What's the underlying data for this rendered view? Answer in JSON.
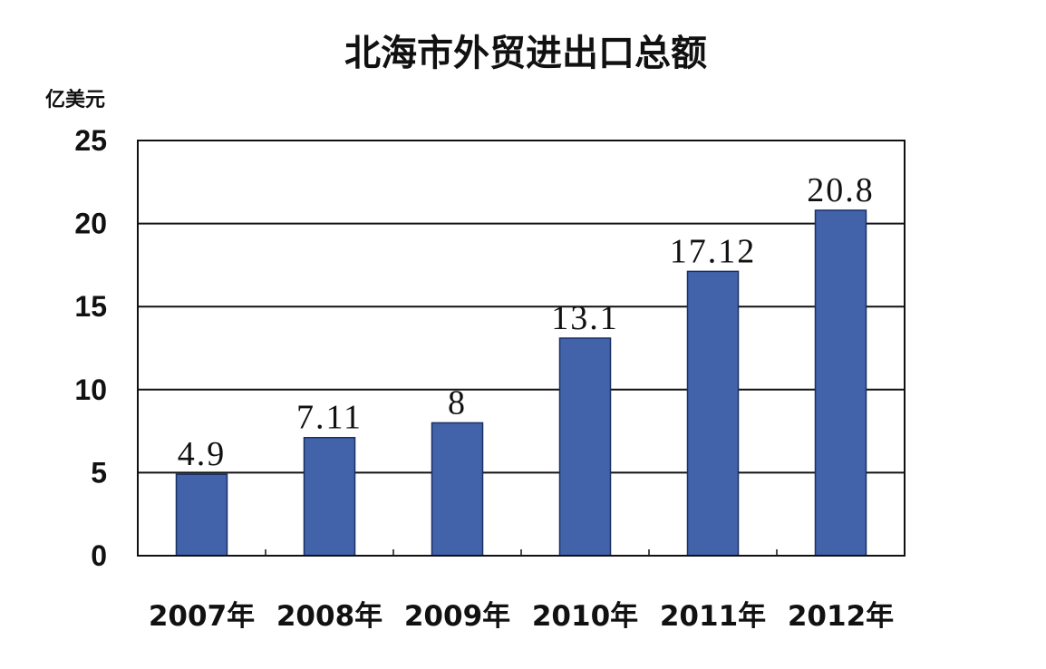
{
  "chart_data": {
    "type": "bar",
    "title": "北海市外贸进出口总额",
    "ylabel": "亿美元",
    "xlabel": "",
    "categories": [
      "2007年",
      "2008年",
      "2009年",
      "2010年",
      "2011年",
      "2012年"
    ],
    "values": [
      4.9,
      7.11,
      8,
      13.1,
      17.12,
      20.8
    ],
    "data_labels": [
      "4.9",
      "7.11",
      "8",
      "13.1",
      "17.12",
      "20.8"
    ],
    "ylim": [
      0,
      25
    ],
    "yticks": [
      "0",
      "5",
      "10",
      "15",
      "20",
      "25"
    ],
    "grid": true,
    "legend": "none",
    "colors": {
      "bar": "#4263AA",
      "bar_edge": "#1B2F63",
      "grid": "#111111"
    }
  }
}
